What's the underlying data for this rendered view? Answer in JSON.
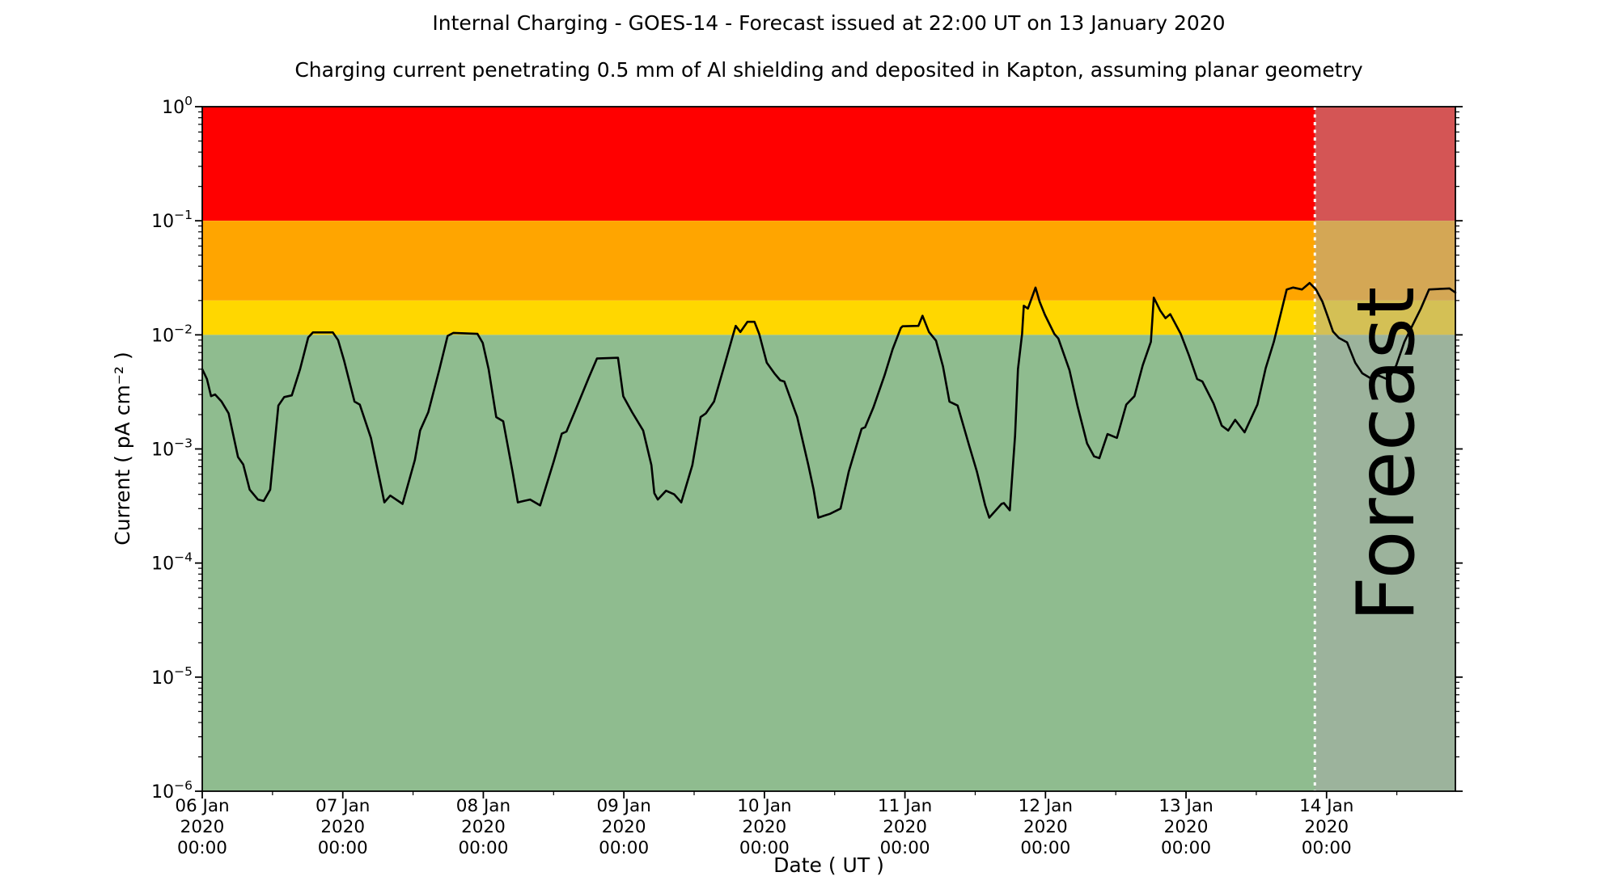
{
  "chart_data": {
    "type": "line",
    "title": "Internal Charging - GOES-14 - Forecast issued at 22:00 UT on 13 January 2020",
    "subtitle": "Charging current penetrating 0.5 mm of Al shielding and deposited in Kapton, assuming planar geometry",
    "xlabel": "Date ( UT )",
    "ylabel": "Current ( pA cm⁻² )",
    "x_axis": {
      "epoch": "06 Jan 2020 00:00",
      "range_hours": [
        0,
        214
      ],
      "major_ticks": [
        {
          "hour": 0,
          "lines": [
            "06 Jan",
            "2020",
            "00:00"
          ]
        },
        {
          "hour": 24,
          "lines": [
            "07 Jan",
            "2020",
            "00:00"
          ]
        },
        {
          "hour": 48,
          "lines": [
            "08 Jan",
            "2020",
            "00:00"
          ]
        },
        {
          "hour": 72,
          "lines": [
            "09 Jan",
            "2020",
            "00:00"
          ]
        },
        {
          "hour": 96,
          "lines": [
            "10 Jan",
            "2020",
            "00:00"
          ]
        },
        {
          "hour": 120,
          "lines": [
            "11 Jan",
            "2020",
            "00:00"
          ]
        },
        {
          "hour": 144,
          "lines": [
            "12 Jan",
            "2020",
            "00:00"
          ]
        },
        {
          "hour": 168,
          "lines": [
            "13 Jan",
            "2020",
            "00:00"
          ]
        },
        {
          "hour": 192,
          "lines": [
            "14 Jan",
            "2020",
            "00:00"
          ]
        }
      ],
      "minor_tick_hours": [
        12,
        36,
        60,
        84,
        108,
        132,
        156,
        180,
        204
      ]
    },
    "y_axis": {
      "scale": "log",
      "range": [
        1e-06,
        1
      ],
      "tick_exponents": [
        "0",
        "−1",
        "−2",
        "−3",
        "−4",
        "−5",
        "−6"
      ]
    },
    "bands": [
      {
        "name": "red",
        "from": 0.1,
        "to": 1.0,
        "color": "#ff0000"
      },
      {
        "name": "orange",
        "from": 0.02,
        "to": 0.1,
        "color": "#ffa500"
      },
      {
        "name": "yellow",
        "from": 0.01,
        "to": 0.02,
        "color": "#ffd700"
      },
      {
        "name": "green",
        "from": 1e-06,
        "to": 0.01,
        "color": "#8fbc8f"
      }
    ],
    "forecast": {
      "label": "Forecast",
      "start_hour": 190,
      "end_hour": 214,
      "divider_color": "#ffffff",
      "overlay_color": "rgba(170,170,170,0.5)",
      "label_color": "rgba(55,55,55,0.3)"
    },
    "series": [
      {
        "name": "charging-current",
        "color": "#000000",
        "points_hour_value": [
          [
            0,
            0.005
          ],
          [
            0.8,
            0.0041
          ],
          [
            1.5,
            0.0029
          ],
          [
            2.2,
            0.003
          ],
          [
            3.3,
            0.0026
          ],
          [
            4.5,
            0.00205
          ],
          [
            6.1,
            0.00085
          ],
          [
            7.0,
            0.00073
          ],
          [
            8.1,
            0.00044
          ],
          [
            9.5,
            0.00036
          ],
          [
            10.5,
            0.00035
          ],
          [
            11.6,
            0.00044
          ],
          [
            13.0,
            0.0024
          ],
          [
            14.0,
            0.00285
          ],
          [
            15.3,
            0.00295
          ],
          [
            16.7,
            0.005
          ],
          [
            18.1,
            0.0095
          ],
          [
            18.9,
            0.0105
          ],
          [
            22.3,
            0.0105
          ],
          [
            23.2,
            0.009
          ],
          [
            24.2,
            0.006
          ],
          [
            26.0,
            0.0026
          ],
          [
            26.9,
            0.00245
          ],
          [
            28.8,
            0.00125
          ],
          [
            30.7,
            0.00043
          ],
          [
            31.1,
            0.00034
          ],
          [
            32.1,
            0.00039
          ],
          [
            34.2,
            0.00033
          ],
          [
            36.3,
            0.0008
          ],
          [
            37.2,
            0.00145
          ],
          [
            38.6,
            0.0021
          ],
          [
            40.5,
            0.005
          ],
          [
            41.9,
            0.0098
          ],
          [
            42.9,
            0.0104
          ],
          [
            47.0,
            0.0102
          ],
          [
            47.9,
            0.0085
          ],
          [
            48.9,
            0.005
          ],
          [
            50.2,
            0.0019
          ],
          [
            51.4,
            0.00175
          ],
          [
            53.0,
            0.00063
          ],
          [
            53.9,
            0.00034
          ],
          [
            54.9,
            0.00035
          ],
          [
            56.0,
            0.00036
          ],
          [
            57.7,
            0.00032
          ],
          [
            60.0,
            0.00077
          ],
          [
            61.4,
            0.00136
          ],
          [
            62.2,
            0.00142
          ],
          [
            64.2,
            0.0025
          ],
          [
            66.0,
            0.0042
          ],
          [
            67.4,
            0.0062
          ],
          [
            71.0,
            0.0063
          ],
          [
            71.9,
            0.0029
          ],
          [
            73.4,
            0.0021
          ],
          [
            75.3,
            0.00145
          ],
          [
            76.7,
            0.00072
          ],
          [
            77.2,
            0.00041
          ],
          [
            77.8,
            0.00036
          ],
          [
            79.2,
            0.00043
          ],
          [
            80.6,
            0.0004
          ],
          [
            81.8,
            0.00034
          ],
          [
            83.7,
            0.00072
          ],
          [
            85.1,
            0.0019
          ],
          [
            86.0,
            0.00205
          ],
          [
            87.4,
            0.0026
          ],
          [
            89.3,
            0.0057
          ],
          [
            90.7,
            0.0102
          ],
          [
            91.1,
            0.012
          ],
          [
            91.9,
            0.0106
          ],
          [
            93.1,
            0.013
          ],
          [
            94.3,
            0.013
          ],
          [
            95.1,
            0.0102
          ],
          [
            96.4,
            0.0057
          ],
          [
            97.7,
            0.0046
          ],
          [
            98.7,
            0.004
          ],
          [
            99.4,
            0.0039
          ],
          [
            101.6,
            0.0019
          ],
          [
            103.5,
            0.00072
          ],
          [
            104.4,
            0.00044
          ],
          [
            105.2,
            0.00025
          ],
          [
            107.2,
            0.00027
          ],
          [
            109.0,
            0.0003
          ],
          [
            110.4,
            0.00063
          ],
          [
            111.8,
            0.0011
          ],
          [
            112.6,
            0.0015
          ],
          [
            113.2,
            0.00155
          ],
          [
            114.6,
            0.0023
          ],
          [
            116.5,
            0.0044
          ],
          [
            117.9,
            0.0075
          ],
          [
            119.3,
            0.0115
          ],
          [
            119.6,
            0.0119
          ],
          [
            122.3,
            0.012
          ],
          [
            123.0,
            0.0147
          ],
          [
            124.1,
            0.0106
          ],
          [
            125.3,
            0.0089
          ],
          [
            126.5,
            0.0053
          ],
          [
            127.6,
            0.0026
          ],
          [
            129.0,
            0.0024
          ],
          [
            130.9,
            0.0011
          ],
          [
            132.3,
            0.00063
          ],
          [
            133.7,
            0.00032
          ],
          [
            134.4,
            0.00025
          ],
          [
            136.5,
            0.00033
          ],
          [
            136.9,
            0.000335
          ],
          [
            137.9,
            0.00029
          ],
          [
            138.8,
            0.0013
          ],
          [
            139.3,
            0.005
          ],
          [
            140.0,
            0.0102
          ],
          [
            140.3,
            0.018
          ],
          [
            141.0,
            0.017
          ],
          [
            142.3,
            0.026
          ],
          [
            143.0,
            0.0195
          ],
          [
            143.9,
            0.015
          ],
          [
            145.5,
            0.0102
          ],
          [
            146.2,
            0.0093
          ],
          [
            148.1,
            0.0049
          ],
          [
            149.5,
            0.00235
          ],
          [
            151.1,
            0.00112
          ],
          [
            152.3,
            0.00086
          ],
          [
            153.2,
            0.00083
          ],
          [
            154.6,
            0.00135
          ],
          [
            156.2,
            0.00125
          ],
          [
            157.8,
            0.00245
          ],
          [
            159.2,
            0.0029
          ],
          [
            160.6,
            0.0054
          ],
          [
            162.0,
            0.0087
          ],
          [
            162.5,
            0.0212
          ],
          [
            163.6,
            0.0163
          ],
          [
            164.5,
            0.014
          ],
          [
            165.3,
            0.0152
          ],
          [
            167.1,
            0.0102
          ],
          [
            168.5,
            0.0066
          ],
          [
            169.9,
            0.0041
          ],
          [
            170.8,
            0.0039
          ],
          [
            172.7,
            0.0025
          ],
          [
            174.1,
            0.0016
          ],
          [
            175.2,
            0.00145
          ],
          [
            176.4,
            0.0018
          ],
          [
            178.0,
            0.0014
          ],
          [
            180.2,
            0.00245
          ],
          [
            181.6,
            0.0051
          ],
          [
            183.0,
            0.0087
          ],
          [
            184.4,
            0.017
          ],
          [
            185.2,
            0.025
          ],
          [
            186.3,
            0.026
          ],
          [
            187.8,
            0.025
          ],
          [
            189.1,
            0.0285
          ],
          [
            190.2,
            0.025
          ],
          [
            191.3,
            0.0195
          ],
          [
            192.2,
            0.0145
          ],
          [
            193.1,
            0.0107
          ],
          [
            194.1,
            0.0094
          ],
          [
            195.5,
            0.0086
          ],
          [
            196.9,
            0.0057
          ],
          [
            198.1,
            0.0046
          ],
          [
            199.4,
            0.0042
          ],
          [
            200.9,
            0.0044
          ],
          [
            202.5,
            0.00405
          ],
          [
            203.9,
            0.0054
          ],
          [
            205.3,
            0.0087
          ],
          [
            206.7,
            0.0122
          ],
          [
            208.1,
            0.017
          ],
          [
            209.5,
            0.025
          ],
          [
            213.0,
            0.0255
          ],
          [
            214.0,
            0.0235
          ]
        ]
      }
    ]
  }
}
